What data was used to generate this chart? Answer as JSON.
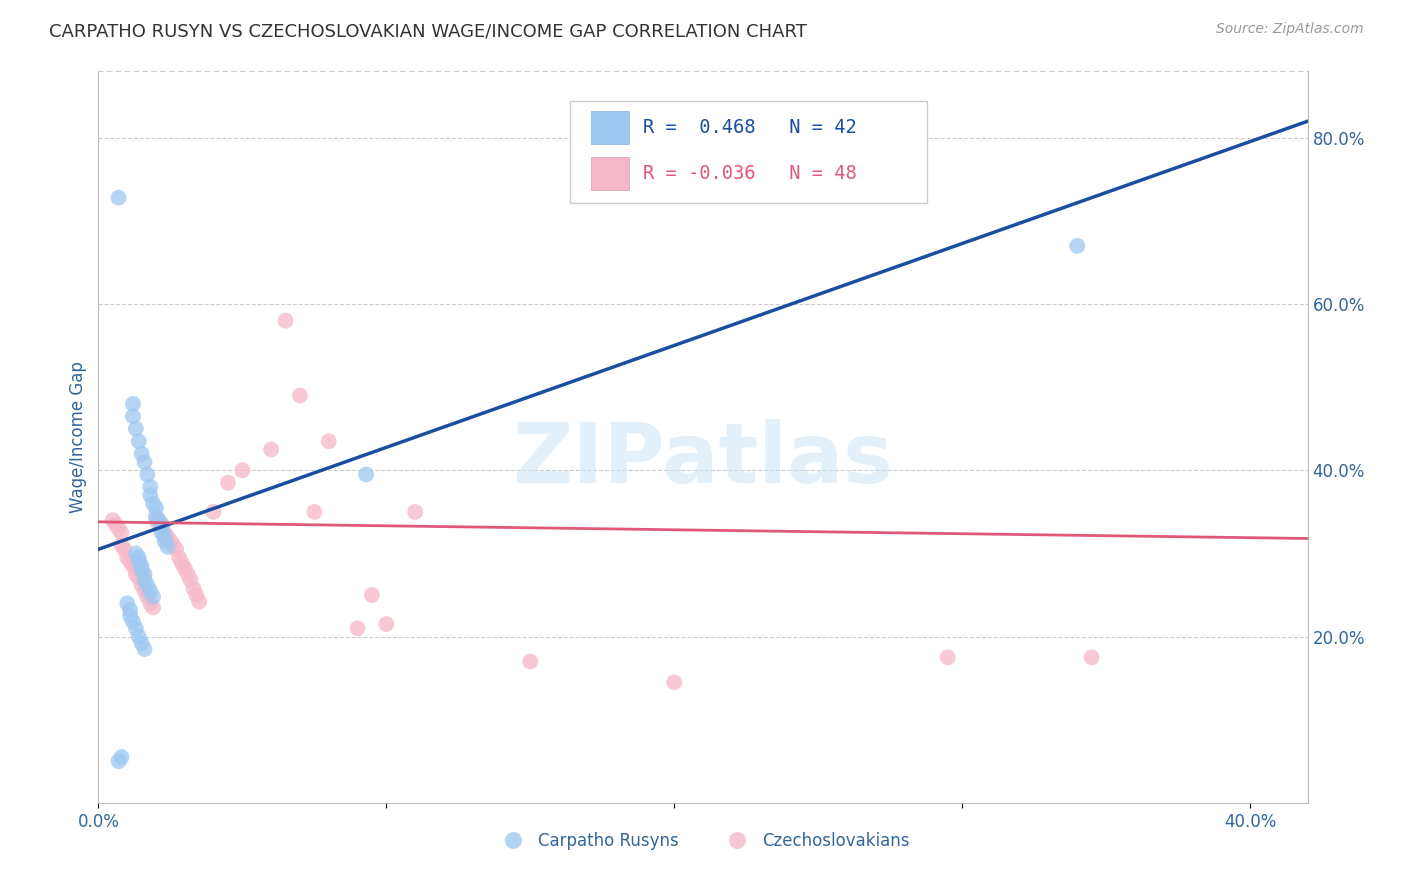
{
  "title": "CARPATHO RUSYN VS CZECHOSLOVAKIAN WAGE/INCOME GAP CORRELATION CHART",
  "source": "Source: ZipAtlas.com",
  "ylabel": "Wage/Income Gap",
  "xlim": [
    0.0,
    0.42
  ],
  "ylim": [
    0.0,
    0.88
  ],
  "xticks": [
    0.0,
    0.1,
    0.2,
    0.3,
    0.4
  ],
  "xtick_labels": [
    "0.0%",
    "",
    "",
    "",
    "40.0%"
  ],
  "yticks_right": [
    0.2,
    0.4,
    0.6,
    0.8
  ],
  "ytick_labels_right": [
    "20.0%",
    "40.0%",
    "60.0%",
    "80.0%"
  ],
  "blue_color": "#9ec8f0",
  "pink_color": "#f5b8c8",
  "blue_line_color": "#1a4fa0",
  "pink_line_color": "#e05878",
  "watermark": "ZIPatlas",
  "background_color": "#ffffff",
  "grid_color": "#cccccc",
  "axis_label_color": "#336699",
  "blue_scatter_x": [
    0.007,
    0.012,
    0.012,
    0.013,
    0.014,
    0.015,
    0.016,
    0.017,
    0.018,
    0.018,
    0.019,
    0.02,
    0.02,
    0.021,
    0.022,
    0.022,
    0.022,
    0.023,
    0.023,
    0.024,
    0.013,
    0.014,
    0.014,
    0.015,
    0.015,
    0.016,
    0.016,
    0.017,
    0.018,
    0.019,
    0.01,
    0.011,
    0.011,
    0.012,
    0.013,
    0.014,
    0.015,
    0.016,
    0.093,
    0.34,
    0.008,
    0.007
  ],
  "blue_scatter_y": [
    0.728,
    0.48,
    0.465,
    0.45,
    0.435,
    0.42,
    0.41,
    0.395,
    0.38,
    0.37,
    0.36,
    0.355,
    0.345,
    0.34,
    0.335,
    0.33,
    0.325,
    0.32,
    0.315,
    0.308,
    0.3,
    0.295,
    0.29,
    0.285,
    0.28,
    0.275,
    0.268,
    0.262,
    0.255,
    0.248,
    0.24,
    0.232,
    0.225,
    0.218,
    0.21,
    0.2,
    0.192,
    0.185,
    0.395,
    0.67,
    0.055,
    0.05
  ],
  "pink_scatter_x": [
    0.005,
    0.006,
    0.007,
    0.008,
    0.008,
    0.009,
    0.01,
    0.011,
    0.012,
    0.013,
    0.014,
    0.015,
    0.016,
    0.017,
    0.018,
    0.019,
    0.02,
    0.021,
    0.022,
    0.023,
    0.024,
    0.025,
    0.026,
    0.027,
    0.028,
    0.029,
    0.03,
    0.031,
    0.032,
    0.033,
    0.034,
    0.035,
    0.04,
    0.045,
    0.05,
    0.06,
    0.065,
    0.07,
    0.075,
    0.08,
    0.09,
    0.095,
    0.1,
    0.11,
    0.15,
    0.2,
    0.295,
    0.345
  ],
  "pink_scatter_y": [
    0.34,
    0.335,
    0.33,
    0.325,
    0.31,
    0.305,
    0.295,
    0.29,
    0.285,
    0.275,
    0.27,
    0.262,
    0.255,
    0.248,
    0.24,
    0.235,
    0.34,
    0.335,
    0.33,
    0.325,
    0.32,
    0.315,
    0.31,
    0.305,
    0.295,
    0.288,
    0.282,
    0.275,
    0.268,
    0.258,
    0.25,
    0.242,
    0.35,
    0.385,
    0.4,
    0.425,
    0.58,
    0.49,
    0.35,
    0.435,
    0.21,
    0.25,
    0.215,
    0.35,
    0.17,
    0.145,
    0.175,
    0.175
  ],
  "blue_line_x": [
    0.0,
    0.42
  ],
  "blue_line_y": [
    0.305,
    0.82
  ],
  "pink_line_x": [
    0.0,
    0.42
  ],
  "pink_line_y": [
    0.338,
    0.318
  ]
}
